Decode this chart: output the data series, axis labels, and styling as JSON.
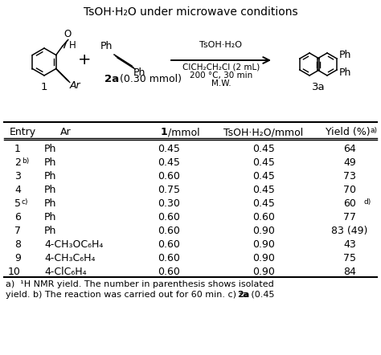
{
  "title_line": "TsOH·H₂O under microwave conditions",
  "rows": [
    {
      "entry": "1",
      "entry_sup": "",
      "ar": "Ph",
      "mmol1": "0.45",
      "tsoh": "0.45",
      "yield_main": "64",
      "yield_sup": ""
    },
    {
      "entry": "2",
      "entry_sup": "b)",
      "ar": "Ph",
      "mmol1": "0.45",
      "tsoh": "0.45",
      "yield_main": "49",
      "yield_sup": ""
    },
    {
      "entry": "3",
      "entry_sup": "",
      "ar": "Ph",
      "mmol1": "0.60",
      "tsoh": "0.45",
      "yield_main": "73",
      "yield_sup": ""
    },
    {
      "entry": "4",
      "entry_sup": "",
      "ar": "Ph",
      "mmol1": "0.75",
      "tsoh": "0.45",
      "yield_main": "70",
      "yield_sup": ""
    },
    {
      "entry": "5",
      "entry_sup": "c)",
      "ar": "Ph",
      "mmol1": "0.30",
      "tsoh": "0.45",
      "yield_main": "60",
      "yield_sup": "d)"
    },
    {
      "entry": "6",
      "entry_sup": "",
      "ar": "Ph",
      "mmol1": "0.60",
      "tsoh": "0.60",
      "yield_main": "77",
      "yield_sup": ""
    },
    {
      "entry": "7",
      "entry_sup": "",
      "ar": "Ph",
      "mmol1": "0.60",
      "tsoh": "0.90",
      "yield_main": "83 (49)",
      "yield_sup": ""
    },
    {
      "entry": "8",
      "entry_sup": "",
      "ar": "4-CH₃OC₆H₄",
      "mmol1": "0.60",
      "tsoh": "0.90",
      "yield_main": "43",
      "yield_sup": ""
    },
    {
      "entry": "9",
      "entry_sup": "",
      "ar": "4-CH₃C₆H₄",
      "mmol1": "0.60",
      "tsoh": "0.90",
      "yield_main": "75",
      "yield_sup": ""
    },
    {
      "entry": "10",
      "entry_sup": "",
      "ar": "4-ClC₆H₄",
      "mmol1": "0.60",
      "tsoh": "0.90",
      "yield_main": "84",
      "yield_sup": ""
    }
  ],
  "footnote1": "a)  ¹H NMR yield. The number in parenthesis shows isolated",
  "footnote2": "yield. b) The reaction was carried out for 60 min. c) ²a (0.45"
}
